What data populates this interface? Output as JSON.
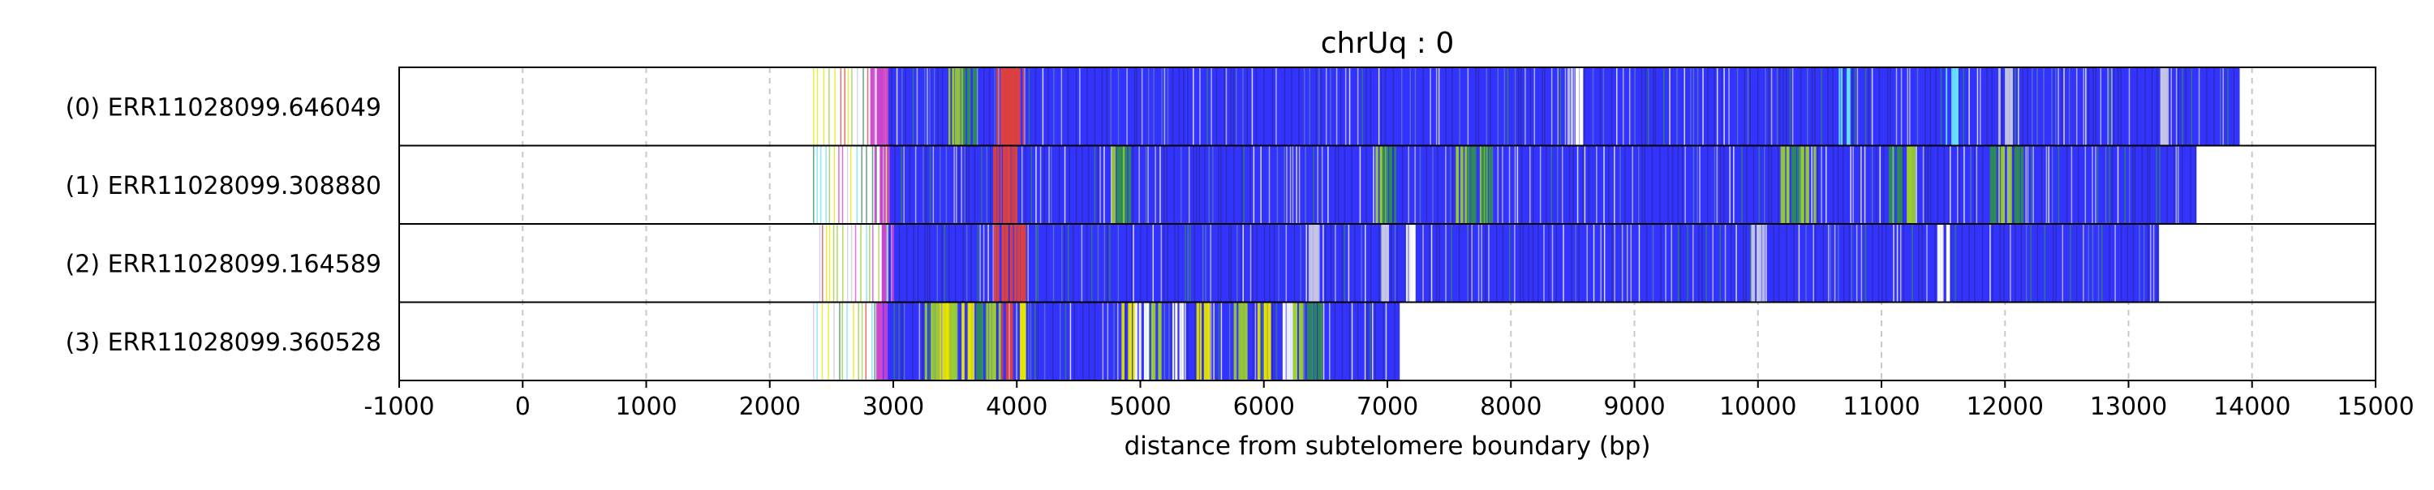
{
  "chart_data": {
    "type": "bar",
    "title": "chrUq : 0",
    "xlabel": "distance from subtelomere boundary (bp)",
    "ylabel": "",
    "xlim": [
      -1000,
      15000
    ],
    "xticks": [
      -1000,
      0,
      1000,
      2000,
      3000,
      4000,
      5000,
      6000,
      7000,
      8000,
      9000,
      10000,
      11000,
      12000,
      13000,
      14000,
      15000
    ],
    "grid": "vertical dashed",
    "orientation": "horizontal",
    "colors": {
      "main": "#3333ff",
      "green": "#2e8b57",
      "yellowgreen": "#9acd32",
      "yellow": "#e6e600",
      "red": "#dc4040",
      "magenta": "#cc44cc",
      "cyan": "#66e0ff",
      "lightgray": "#c8c8e6",
      "white": "#ffffff"
    },
    "reads": [
      {
        "label": "(0) ERR11028099.646049",
        "start": 2350,
        "dense_start": 2950,
        "end": 13900,
        "features": [
          {
            "pos": 2850,
            "color": "magenta"
          },
          {
            "pos": 2900,
            "color": "magenta"
          },
          {
            "pos": 3500,
            "color": "yellowgreen"
          },
          {
            "pos": 3600,
            "color": "green"
          },
          {
            "pos": 3850,
            "color": "red"
          },
          {
            "pos": 3900,
            "color": "red"
          },
          {
            "pos": 3950,
            "color": "red"
          },
          {
            "pos": 4000,
            "color": "red"
          },
          {
            "pos": 8500,
            "color": "lightgray"
          },
          {
            "pos": 8520,
            "color": "white"
          },
          {
            "pos": 10700,
            "color": "cyan"
          },
          {
            "pos": 11550,
            "color": "cyan"
          },
          {
            "pos": 12000,
            "color": "lightgray"
          },
          {
            "pos": 13300,
            "color": "lightgray"
          }
        ]
      },
      {
        "label": "(1) ERR11028099.308880",
        "start": 2350,
        "dense_start": 2950,
        "end": 13550,
        "features": [
          {
            "pos": 2900,
            "color": "magenta"
          },
          {
            "pos": 3850,
            "color": "red"
          },
          {
            "pos": 3950,
            "color": "red"
          },
          {
            "pos": 4800,
            "color": "yellowgreen"
          },
          {
            "pos": 4850,
            "color": "green"
          },
          {
            "pos": 6950,
            "color": "yellowgreen"
          },
          {
            "pos": 7000,
            "color": "green"
          },
          {
            "pos": 7600,
            "color": "yellowgreen"
          },
          {
            "pos": 7650,
            "color": "green"
          },
          {
            "pos": 7750,
            "color": "yellowgreen"
          },
          {
            "pos": 7800,
            "color": "green"
          },
          {
            "pos": 10200,
            "color": "yellowgreen"
          },
          {
            "pos": 10300,
            "color": "green"
          },
          {
            "pos": 10400,
            "color": "yellowgreen"
          },
          {
            "pos": 11100,
            "color": "green"
          },
          {
            "pos": 11200,
            "color": "yellowgreen"
          },
          {
            "pos": 11900,
            "color": "green"
          },
          {
            "pos": 12000,
            "color": "yellowgreen"
          },
          {
            "pos": 12100,
            "color": "green"
          }
        ]
      },
      {
        "label": "(2) ERR11028099.164589",
        "start": 2400,
        "dense_start": 2950,
        "end": 13250,
        "features": [
          {
            "pos": 2950,
            "color": "magenta"
          },
          {
            "pos": 3850,
            "color": "red"
          },
          {
            "pos": 3950,
            "color": "red"
          },
          {
            "pos": 4000,
            "color": "red"
          },
          {
            "pos": 6400,
            "color": "lightgray"
          },
          {
            "pos": 7000,
            "color": "lightgray"
          },
          {
            "pos": 7200,
            "color": "white"
          },
          {
            "pos": 10000,
            "color": "lightgray"
          },
          {
            "pos": 11500,
            "color": "white"
          }
        ]
      },
      {
        "label": "(3) ERR11028099.360528",
        "start": 2350,
        "dense_start": 2900,
        "end": 7100,
        "features": [
          {
            "pos": 2900,
            "color": "magenta"
          },
          {
            "pos": 3300,
            "color": "yellowgreen"
          },
          {
            "pos": 3400,
            "color": "yellow"
          },
          {
            "pos": 3500,
            "color": "yellowgreen"
          },
          {
            "pos": 3600,
            "color": "yellow"
          },
          {
            "pos": 3700,
            "color": "green"
          },
          {
            "pos": 3800,
            "color": "yellowgreen"
          },
          {
            "pos": 3900,
            "color": "red"
          },
          {
            "pos": 4000,
            "color": "yellow"
          },
          {
            "pos": 4900,
            "color": "yellow"
          },
          {
            "pos": 5000,
            "color": "white"
          },
          {
            "pos": 5100,
            "color": "yellowgreen"
          },
          {
            "pos": 5300,
            "color": "white"
          },
          {
            "pos": 5500,
            "color": "yellow"
          },
          {
            "pos": 5800,
            "color": "yellowgreen"
          },
          {
            "pos": 6000,
            "color": "yellow"
          },
          {
            "pos": 6200,
            "color": "white"
          },
          {
            "pos": 6250,
            "color": "yellowgreen"
          },
          {
            "pos": 6400,
            "color": "green"
          }
        ]
      }
    ]
  }
}
